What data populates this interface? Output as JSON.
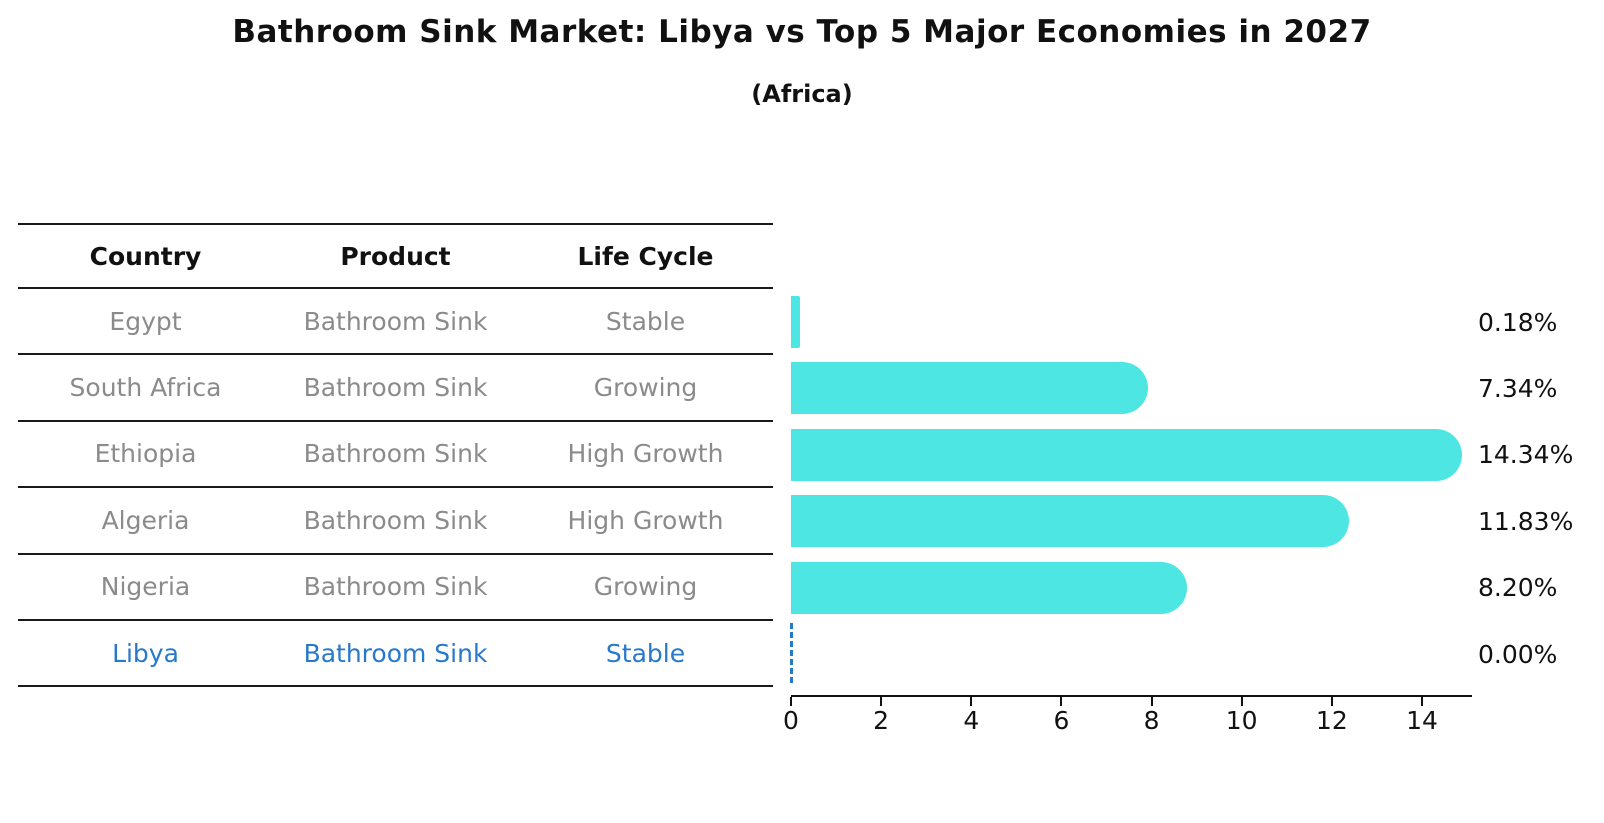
{
  "title": "Bathroom Sink Market: Libya vs Top 5 Major Economies in 2027",
  "subtitle": "(Africa)",
  "table": {
    "headers": [
      "Country",
      "Product",
      "Life Cycle"
    ],
    "rows": [
      {
        "country": "Egypt",
        "product": "Bathroom Sink",
        "life_cycle": "Stable",
        "highlight": false
      },
      {
        "country": "South Africa",
        "product": "Bathroom Sink",
        "life_cycle": "Growing",
        "highlight": false
      },
      {
        "country": "Ethiopia",
        "product": "Bathroom Sink",
        "life_cycle": "High Growth",
        "highlight": false
      },
      {
        "country": "Algeria",
        "product": "Bathroom Sink",
        "life_cycle": "High Growth",
        "highlight": false
      },
      {
        "country": "Nigeria",
        "product": "Bathroom Sink",
        "life_cycle": "Growing",
        "highlight": false
      },
      {
        "country": "Libya",
        "product": "Bathroom Sink",
        "life_cycle": "Stable",
        "highlight": true
      }
    ]
  },
  "chart_data": {
    "type": "bar",
    "orientation": "horizontal",
    "categories": [
      "Egypt",
      "South Africa",
      "Ethiopia",
      "Algeria",
      "Nigeria",
      "Libya"
    ],
    "values": [
      0.18,
      7.34,
      14.34,
      11.83,
      8.2,
      0.0
    ],
    "value_labels": [
      "0.18%",
      "7.34%",
      "14.34%",
      "11.83%",
      "8.20%",
      "0.00%"
    ],
    "title": "Bathroom Sink Market: Libya vs Top 5 Major Economies in 2027",
    "xlabel": "",
    "ylabel": "",
    "x_ticks": [
      0,
      2,
      4,
      6,
      8,
      10,
      12,
      14
    ],
    "xlim": [
      0,
      15.06
    ],
    "grid": false,
    "legend": "none",
    "bar_color": "#4DE6E2",
    "highlight_color": "#2878CB",
    "zero_marker_style": "dashed-line"
  },
  "colors": {
    "background": "#ffffff",
    "bar": "#4DE6E2",
    "highlight_blue": "#2878CB",
    "table_text_gray": "#8b8b8b",
    "text_black": "#111111",
    "line": "#1a1a1a"
  }
}
